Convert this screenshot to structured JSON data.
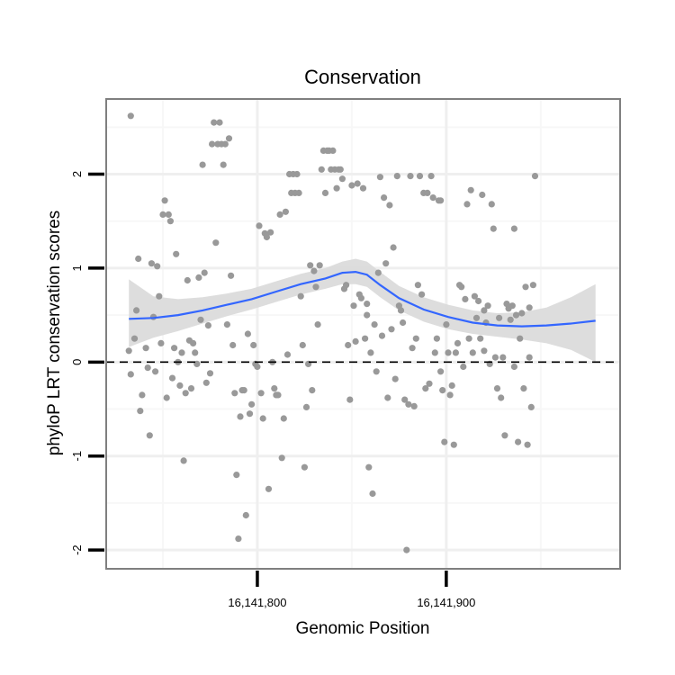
{
  "chart_data": {
    "type": "scatter",
    "title": "Conservation",
    "xlabel": "Genomic Position",
    "ylabel": "phyloP LRT conservation scores",
    "xlim": [
      16141720,
      16141992
    ],
    "ylim": [
      -2.2,
      2.8
    ],
    "x_ticks": [
      16141800,
      16141900
    ],
    "x_tick_labels": [
      "16,141,800",
      "16,141,900"
    ],
    "y_ticks": [
      -2,
      -1,
      0,
      1,
      2
    ],
    "y_tick_labels": [
      "-2",
      "-1",
      "0",
      "1",
      "2"
    ],
    "grid": true,
    "reference_line": {
      "y": 0,
      "style": "dashed"
    },
    "colors": {
      "points": "#999999",
      "smooth": "#3366ff",
      "ribbon": "#d9d9d9",
      "grid_major": "#efefef",
      "grid_minor": "#f7f7f7",
      "frame": "#7f7f7f",
      "background": "#ffffff"
    },
    "points": [
      [
        16141733,
        2.62
      ],
      [
        16141732,
        0.12
      ],
      [
        16141733,
        -0.13
      ],
      [
        16141735,
        0.25
      ],
      [
        16141736,
        0.55
      ],
      [
        16141737,
        1.1
      ],
      [
        16141738,
        -0.52
      ],
      [
        16141739,
        -0.35
      ],
      [
        16141741,
        0.15
      ],
      [
        16141742,
        -0.06
      ],
      [
        16141743,
        -0.78
      ],
      [
        16141744,
        1.05
      ],
      [
        16141745,
        0.48
      ],
      [
        16141746,
        -0.1
      ],
      [
        16141747,
        1.02
      ],
      [
        16141748,
        0.7
      ],
      [
        16141749,
        0.2
      ],
      [
        16141750,
        1.57
      ],
      [
        16141751,
        1.72
      ],
      [
        16141752,
        -0.38
      ],
      [
        16141753,
        1.57
      ],
      [
        16141754,
        1.5
      ],
      [
        16141755,
        -0.17
      ],
      [
        16141756,
        0.15
      ],
      [
        16141757,
        1.15
      ],
      [
        16141758,
        0.0
      ],
      [
        16141759,
        -0.25
      ],
      [
        16141760,
        0.1
      ],
      [
        16141761,
        -1.05
      ],
      [
        16141762,
        -0.33
      ],
      [
        16141763,
        0.87
      ],
      [
        16141764,
        0.23
      ],
      [
        16141765,
        -0.28
      ],
      [
        16141766,
        0.2
      ],
      [
        16141767,
        0.1
      ],
      [
        16141768,
        -0.02
      ],
      [
        16141769,
        0.9
      ],
      [
        16141770,
        0.45
      ],
      [
        16141771,
        2.1
      ],
      [
        16141772,
        0.95
      ],
      [
        16141773,
        -0.22
      ],
      [
        16141774,
        0.39
      ],
      [
        16141775,
        -0.12
      ],
      [
        16141776,
        2.32
      ],
      [
        16141777,
        2.55
      ],
      [
        16141778,
        1.27
      ],
      [
        16141779,
        2.32
      ],
      [
        16141780,
        2.55
      ],
      [
        16141781,
        2.32
      ],
      [
        16141782,
        2.1
      ],
      [
        16141783,
        2.32
      ],
      [
        16141784,
        0.4
      ],
      [
        16141785,
        2.38
      ],
      [
        16141786,
        0.92
      ],
      [
        16141787,
        0.18
      ],
      [
        16141788,
        -0.33
      ],
      [
        16141789,
        -1.2
      ],
      [
        16141790,
        -1.88
      ],
      [
        16141791,
        -0.58
      ],
      [
        16141792,
        -0.3
      ],
      [
        16141793,
        -0.3
      ],
      [
        16141794,
        -1.63
      ],
      [
        16141795,
        0.3
      ],
      [
        16141796,
        -0.55
      ],
      [
        16141797,
        -0.45
      ],
      [
        16141798,
        0.18
      ],
      [
        16141799,
        -0.02
      ],
      [
        16141800,
        -0.05
      ],
      [
        16141801,
        1.45
      ],
      [
        16141802,
        -0.33
      ],
      [
        16141803,
        -0.6
      ],
      [
        16141804,
        1.37
      ],
      [
        16141805,
        1.33
      ],
      [
        16141806,
        -1.35
      ],
      [
        16141807,
        1.38
      ],
      [
        16141808,
        0.0
      ],
      [
        16141809,
        -0.28
      ],
      [
        16141810,
        -0.35
      ],
      [
        16141811,
        -0.35
      ],
      [
        16141812,
        1.57
      ],
      [
        16141813,
        -1.02
      ],
      [
        16141814,
        -0.6
      ],
      [
        16141815,
        1.6
      ],
      [
        16141816,
        0.08
      ],
      [
        16141817,
        2.0
      ],
      [
        16141818,
        1.8
      ],
      [
        16141819,
        2.0
      ],
      [
        16141820,
        1.8
      ],
      [
        16141821,
        2.0
      ],
      [
        16141822,
        1.8
      ],
      [
        16141823,
        0.7
      ],
      [
        16141824,
        0.18
      ],
      [
        16141825,
        -1.12
      ],
      [
        16141826,
        -0.48
      ],
      [
        16141827,
        -0.02
      ],
      [
        16141828,
        1.03
      ],
      [
        16141829,
        -0.3
      ],
      [
        16141830,
        0.97
      ],
      [
        16141831,
        0.8
      ],
      [
        16141832,
        0.4
      ],
      [
        16141833,
        1.03
      ],
      [
        16141834,
        2.05
      ],
      [
        16141835,
        2.25
      ],
      [
        16141836,
        1.8
      ],
      [
        16141837,
        2.25
      ],
      [
        16141838,
        2.25
      ],
      [
        16141839,
        2.05
      ],
      [
        16141840,
        2.25
      ],
      [
        16141841,
        2.05
      ],
      [
        16141842,
        1.85
      ],
      [
        16141843,
        2.05
      ],
      [
        16141844,
        2.05
      ],
      [
        16141845,
        1.95
      ],
      [
        16141846,
        0.78
      ],
      [
        16141847,
        0.82
      ],
      [
        16141848,
        0.18
      ],
      [
        16141849,
        -0.4
      ],
      [
        16141850,
        1.88
      ],
      [
        16141851,
        0.6
      ],
      [
        16141852,
        0.22
      ],
      [
        16141853,
        1.9
      ],
      [
        16141854,
        0.72
      ],
      [
        16141855,
        0.68
      ],
      [
        16141856,
        1.85
      ],
      [
        16141857,
        0.25
      ],
      [
        16141858,
        0.5
      ],
      [
        16141859,
        -1.12
      ],
      [
        16141860,
        0.1
      ],
      [
        16141861,
        -1.4
      ],
      [
        16141862,
        0.4
      ],
      [
        16141863,
        -0.1
      ],
      [
        16141864,
        0.95
      ],
      [
        16141865,
        1.97
      ],
      [
        16141866,
        0.28
      ],
      [
        16141867,
        1.75
      ],
      [
        16141868,
        1.05
      ],
      [
        16141869,
        -0.38
      ],
      [
        16141870,
        1.67
      ],
      [
        16141871,
        0.35
      ],
      [
        16141872,
        1.22
      ],
      [
        16141873,
        -0.18
      ],
      [
        16141874,
        1.98
      ],
      [
        16141875,
        0.6
      ],
      [
        16141876,
        0.55
      ],
      [
        16141877,
        0.42
      ],
      [
        16141878,
        -0.4
      ],
      [
        16141879,
        -2.0
      ],
      [
        16141880,
        -0.45
      ],
      [
        16141881,
        1.98
      ],
      [
        16141882,
        0.15
      ],
      [
        16141883,
        -0.47
      ],
      [
        16141884,
        0.25
      ],
      [
        16141885,
        0.82
      ],
      [
        16141886,
        1.98
      ],
      [
        16141887,
        0.72
      ],
      [
        16141888,
        1.8
      ],
      [
        16141889,
        -0.28
      ],
      [
        16141890,
        1.8
      ],
      [
        16141891,
        -0.23
      ],
      [
        16141892,
        1.98
      ],
      [
        16141893,
        1.75
      ],
      [
        16141894,
        0.1
      ],
      [
        16141895,
        0.25
      ],
      [
        16141896,
        1.72
      ],
      [
        16141897,
        1.72
      ],
      [
        16141898,
        -0.3
      ],
      [
        16141899,
        -0.85
      ],
      [
        16141900,
        0.4
      ],
      [
        16141901,
        0.1
      ],
      [
        16141902,
        -0.35
      ],
      [
        16141903,
        -0.25
      ],
      [
        16141904,
        -0.88
      ],
      [
        16141905,
        0.1
      ],
      [
        16141906,
        0.2
      ],
      [
        16141907,
        0.82
      ],
      [
        16141908,
        0.8
      ],
      [
        16141909,
        -0.05
      ],
      [
        16141910,
        0.67
      ],
      [
        16141911,
        1.68
      ],
      [
        16141912,
        0.25
      ],
      [
        16141913,
        1.83
      ],
      [
        16141914,
        0.1
      ],
      [
        16141915,
        0.7
      ],
      [
        16141916,
        0.47
      ],
      [
        16141917,
        0.65
      ],
      [
        16141918,
        0.25
      ],
      [
        16141919,
        1.78
      ],
      [
        16141920,
        0.55
      ],
      [
        16141921,
        0.42
      ],
      [
        16141922,
        0.6
      ],
      [
        16141923,
        -0.02
      ],
      [
        16141924,
        1.68
      ],
      [
        16141925,
        1.42
      ],
      [
        16141926,
        0.05
      ],
      [
        16141927,
        -0.28
      ],
      [
        16141928,
        0.47
      ],
      [
        16141929,
        -0.38
      ],
      [
        16141930,
        0.05
      ],
      [
        16141931,
        -0.78
      ],
      [
        16141932,
        0.62
      ],
      [
        16141933,
        0.57
      ],
      [
        16141934,
        0.45
      ],
      [
        16141935,
        0.6
      ],
      [
        16141936,
        1.42
      ],
      [
        16141937,
        0.5
      ],
      [
        16141938,
        -0.85
      ],
      [
        16141939,
        0.25
      ],
      [
        16141940,
        0.52
      ],
      [
        16141941,
        -0.28
      ],
      [
        16141942,
        0.8
      ],
      [
        16141943,
        -0.88
      ],
      [
        16141944,
        0.58
      ],
      [
        16141945,
        -0.48
      ],
      [
        16141946,
        0.82
      ],
      [
        16141947,
        1.98
      ],
      [
        16141944,
        0.05
      ],
      [
        16141936,
        -0.05
      ],
      [
        16141920,
        0.12
      ],
      [
        16141897,
        -0.1
      ],
      [
        16141858,
        0.62
      ]
    ],
    "smooth": {
      "x": [
        16141732,
        16141745,
        16141758,
        16141771,
        16141784,
        16141797,
        16141810,
        16141823,
        16141836,
        16141845,
        16141852,
        16141858,
        16141865,
        16141875,
        16141888,
        16141901,
        16141914,
        16141927,
        16141940,
        16141953,
        16141966,
        16141979
      ],
      "y": [
        0.46,
        0.47,
        0.5,
        0.55,
        0.61,
        0.67,
        0.75,
        0.83,
        0.89,
        0.95,
        0.96,
        0.93,
        0.82,
        0.68,
        0.56,
        0.48,
        0.42,
        0.39,
        0.38,
        0.39,
        0.41,
        0.44
      ],
      "lower": [
        0.16,
        0.26,
        0.33,
        0.41,
        0.49,
        0.56,
        0.64,
        0.72,
        0.78,
        0.83,
        0.83,
        0.8,
        0.69,
        0.55,
        0.43,
        0.35,
        0.3,
        0.27,
        0.24,
        0.2,
        0.13,
        0.0
      ],
      "upper": [
        0.88,
        0.7,
        0.67,
        0.69,
        0.73,
        0.78,
        0.86,
        0.94,
        1.0,
        1.07,
        1.1,
        1.07,
        0.96,
        0.81,
        0.69,
        0.61,
        0.55,
        0.52,
        0.53,
        0.58,
        0.69,
        0.83
      ]
    }
  }
}
